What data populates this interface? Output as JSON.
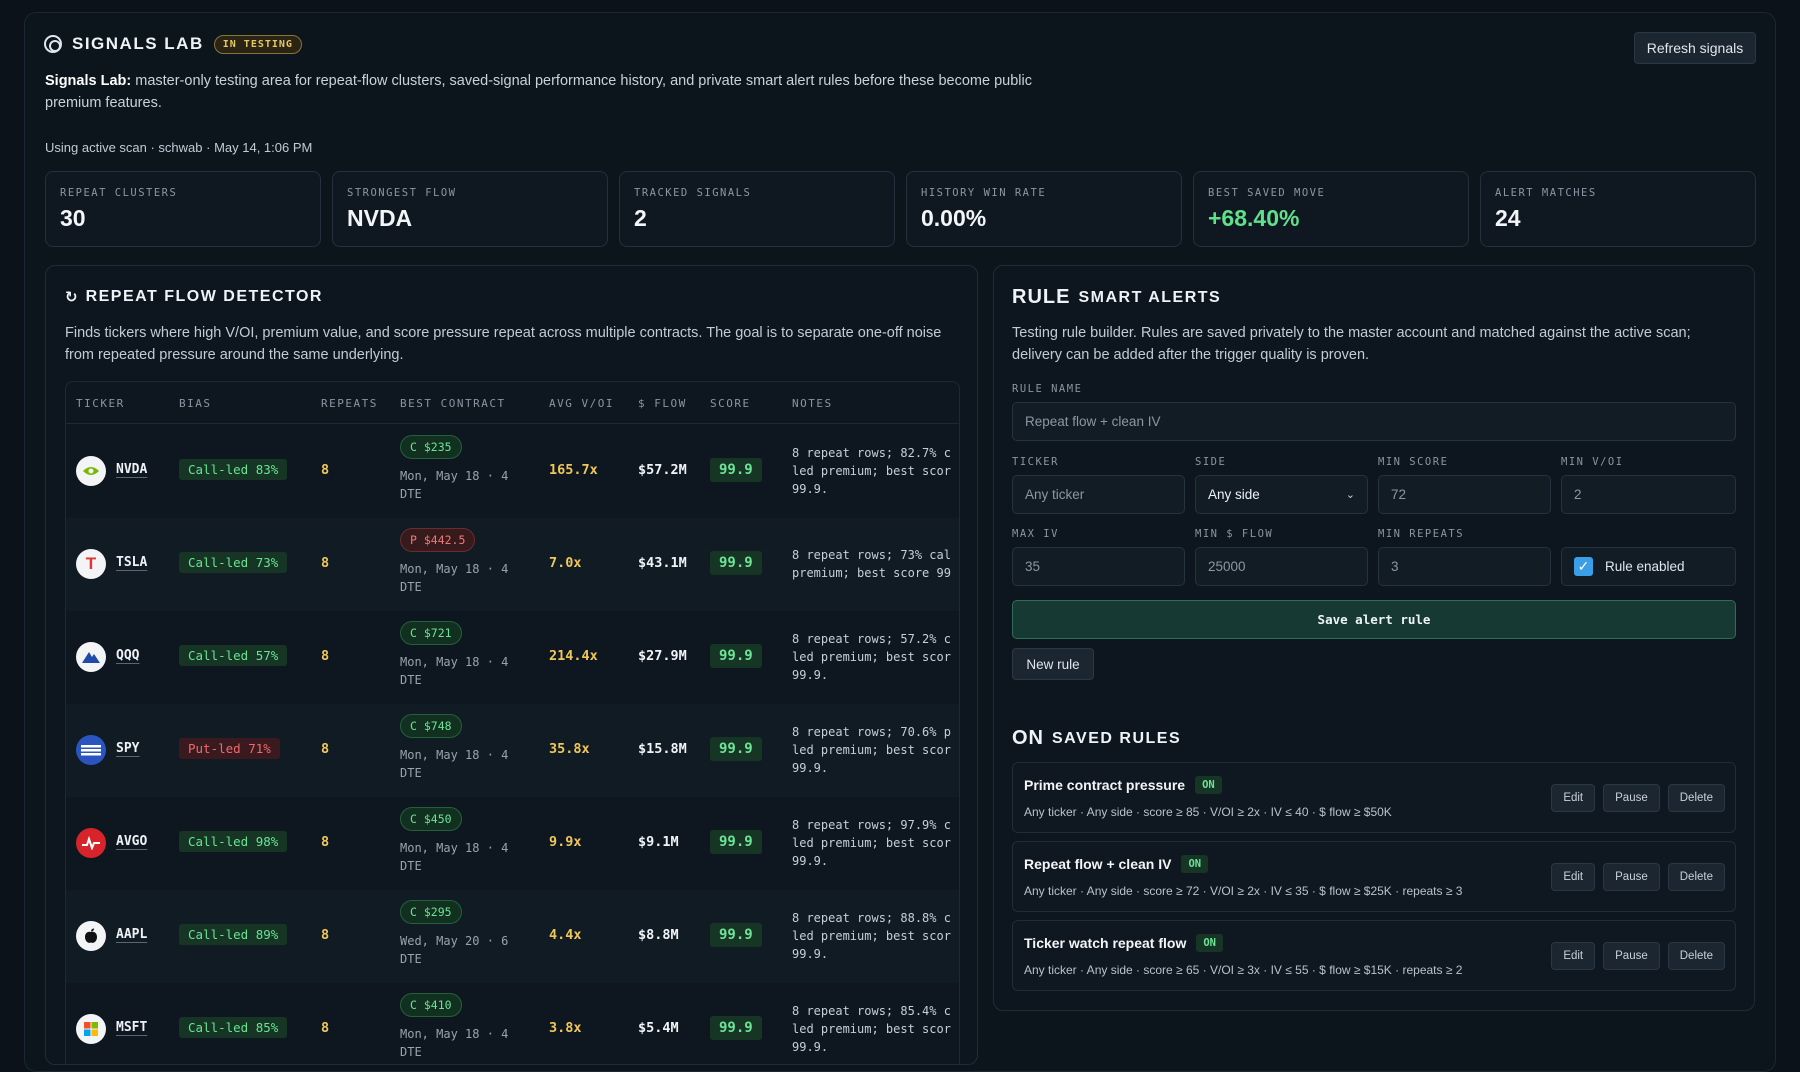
{
  "header": {
    "title": "SIGNALS LAB",
    "badge": "IN TESTING",
    "refresh_label": "Refresh signals",
    "intro_bold": "Signals Lab:",
    "intro_text": " master-only testing area for repeat-flow clusters, saved-signal performance history, and private smart alert rules before these become public premium features.",
    "meta": "Using active scan · schwab · May 14, 1:06 PM"
  },
  "stats": [
    {
      "label": "REPEAT CLUSTERS",
      "value": "30"
    },
    {
      "label": "STRONGEST FLOW",
      "value": "NVDA"
    },
    {
      "label": "TRACKED SIGNALS",
      "value": "2"
    },
    {
      "label": "HISTORY WIN RATE",
      "value": "0.00%"
    },
    {
      "label": "BEST SAVED MOVE",
      "value": "+68.40%"
    },
    {
      "label": "ALERT MATCHES",
      "value": "24"
    }
  ],
  "detector": {
    "title": "REPEAT FLOW DETECTOR",
    "desc": "Finds tickers where high V/OI, premium value, and score pressure repeat across multiple contracts. The goal is to separate one-off noise from repeated pressure around the same underlying.",
    "columns": [
      "TICKER",
      "BIAS",
      "REPEATS",
      "BEST CONTRACT",
      "AVG V/OI",
      "$ FLOW",
      "SCORE",
      "NOTES"
    ],
    "rows": [
      {
        "ticker": "NVDA",
        "bias": "Call-led 83%",
        "repeats": "8",
        "contract": "C $235",
        "expiry": "Mon, May 18 · 4 DTE",
        "voi": "165.7x",
        "flow": "$57.2M",
        "score": "99.9",
        "notes1": "8 repeat rows; 82.7% c",
        "notes2": "led premium; best scor",
        "notes3": "99.9."
      },
      {
        "ticker": "TSLA",
        "bias": "Call-led 73%",
        "repeats": "8",
        "contract": "P $442.5",
        "expiry": "Mon, May 18 · 4 DTE",
        "voi": "7.0x",
        "flow": "$43.1M",
        "score": "99.9",
        "notes1": "8 repeat rows; 73% cal",
        "notes2": "premium; best score 99",
        "notes3": ""
      },
      {
        "ticker": "QQQ",
        "bias": "Call-led 57%",
        "repeats": "8",
        "contract": "C $721",
        "expiry": "Mon, May 18 · 4 DTE",
        "voi": "214.4x",
        "flow": "$27.9M",
        "score": "99.9",
        "notes1": "8 repeat rows; 57.2% c",
        "notes2": "led premium; best scor",
        "notes3": "99.9."
      },
      {
        "ticker": "SPY",
        "bias": "Put-led 71%",
        "repeats": "8",
        "contract": "C $748",
        "expiry": "Mon, May 18 · 4 DTE",
        "voi": "35.8x",
        "flow": "$15.8M",
        "score": "99.9",
        "notes1": "8 repeat rows; 70.6% p",
        "notes2": "led premium; best scor",
        "notes3": "99.9."
      },
      {
        "ticker": "AVGO",
        "bias": "Call-led 98%",
        "repeats": "8",
        "contract": "C $450",
        "expiry": "Mon, May 18 · 4 DTE",
        "voi": "9.9x",
        "flow": "$9.1M",
        "score": "99.9",
        "notes1": "8 repeat rows; 97.9% c",
        "notes2": "led premium; best scor",
        "notes3": "99.9."
      },
      {
        "ticker": "AAPL",
        "bias": "Call-led 89%",
        "repeats": "8",
        "contract": "C $295",
        "expiry": "Wed, May 20 · 6 DTE",
        "voi": "4.4x",
        "flow": "$8.8M",
        "score": "99.9",
        "notes1": "8 repeat rows; 88.8% c",
        "notes2": "led premium; best scor",
        "notes3": "99.9."
      },
      {
        "ticker": "MSFT",
        "bias": "Call-led 85%",
        "repeats": "8",
        "contract": "C $410",
        "expiry": "Mon, May 18 · 4 DTE",
        "voi": "3.8x",
        "flow": "$5.4M",
        "score": "99.9",
        "notes1": "8 repeat rows; 85.4% c",
        "notes2": "led premium; best scor",
        "notes3": "99.9."
      }
    ]
  },
  "alerts": {
    "title_big": "RULE",
    "title": "SMART ALERTS",
    "desc": "Testing rule builder. Rules are saved privately to the master account and matched against the active scan; delivery can be added after the trigger quality is proven.",
    "rule_name_label": "RULE NAME",
    "rule_name_placeholder": "Repeat flow + clean IV",
    "ticker_label": "TICKER",
    "ticker_placeholder": "Any ticker",
    "side_label": "SIDE",
    "side_value": "Any side",
    "min_score_label": "MIN SCORE",
    "min_score_value": "72",
    "min_voi_label": "MIN V/OI",
    "min_voi_value": "2",
    "max_iv_label": "MAX IV",
    "max_iv_value": "35",
    "min_flow_label": "MIN $ FLOW",
    "min_flow_value": "25000",
    "min_repeats_label": "MIN REPEATS",
    "min_repeats_value": "3",
    "enabled_label": "Rule enabled",
    "save_label": "Save alert rule",
    "new_label": "New rule"
  },
  "saved": {
    "title_big": "ON",
    "title": "SAVED RULES",
    "rules": [
      {
        "name": "Prime contract pressure",
        "status": "ON",
        "desc": "Any ticker · Any side · score ≥ 85 · V/OI ≥ 2x · IV ≤ 40 · $ flow ≥ $50K"
      },
      {
        "name": "Repeat flow + clean IV",
        "status": "ON",
        "desc": "Any ticker · Any side · score ≥ 72 · V/OI ≥ 2x · IV ≤ 35 · $ flow ≥ $25K · repeats ≥ 3"
      },
      {
        "name": "Ticker watch repeat flow",
        "status": "ON",
        "desc": "Any ticker · Any side · score ≥ 65 · V/OI ≥ 3x · IV ≤ 55 · $ flow ≥ $15K · repeats ≥ 2"
      }
    ],
    "edit_label": "Edit",
    "pause_label": "Pause",
    "delete_label": "Delete"
  }
}
